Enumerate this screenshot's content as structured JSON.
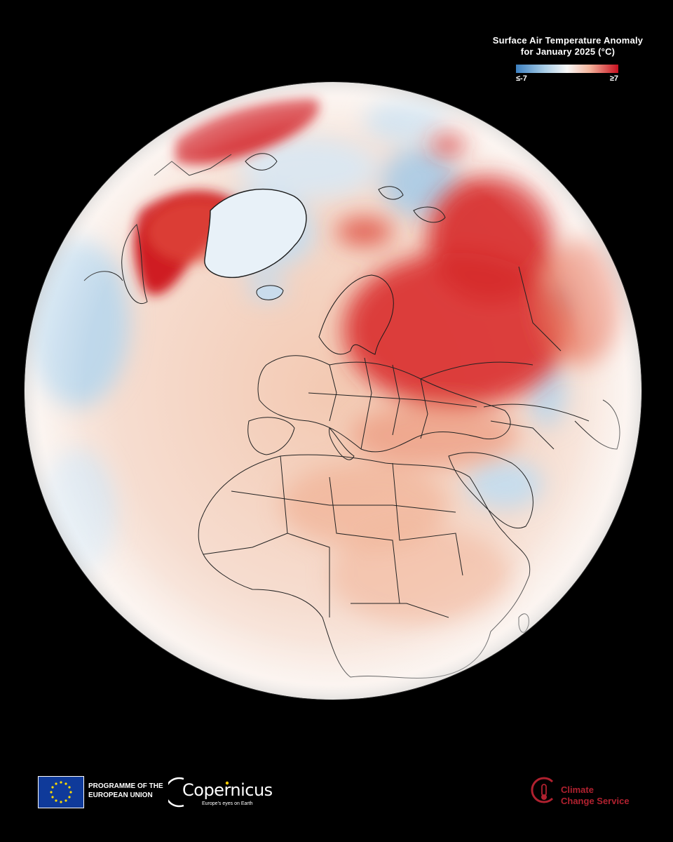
{
  "legend": {
    "title_line1": "Surface Air Temperature Anomaly",
    "title_line2": "for January 2025 (°C)",
    "min_label": "≤-7",
    "max_label": "≥7",
    "colors": [
      "#3c7fc0",
      "#a9cde6",
      "#f7f7f7",
      "#f4b49c",
      "#c8101f"
    ]
  },
  "map": {
    "projection": "orthographic globe",
    "ocean_base_color": "#f6e2d6",
    "background_color": "#000000"
  },
  "footer": {
    "eu_line1": "PROGRAMME OF THE",
    "eu_line2": "EUROPEAN UNION",
    "copernicus_name": "Copernicus",
    "copernicus_tagline": "Europe's eyes on Earth",
    "c3s_line1": "Climate",
    "c3s_line2": "Change Service",
    "c3s_color": "#b0212f"
  }
}
